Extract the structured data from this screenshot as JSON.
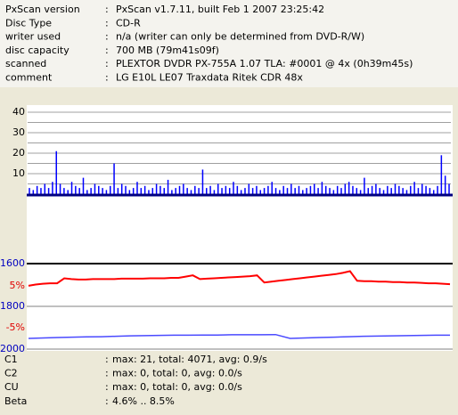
{
  "separator": ":",
  "header": {
    "rows": [
      {
        "label": "PxScan version",
        "value": "PxScan v1.7.11, built Feb  1 2007 23:25:42"
      },
      {
        "label": "Disc Type",
        "value": "CD-R"
      },
      {
        "label": "writer used",
        "value": "n/a (writer can only be determined from DVD-R/W)"
      },
      {
        "label": "disc capacity",
        "value": "700 MB (79m41s09f)"
      },
      {
        "label": "scanned",
        "value": "PLEXTOR DVDR PX-755A 1.07 TLA: #0001 @ 4x (0h39m45s)"
      },
      {
        "label": "comment",
        "value": "LG E10L LE07 Traxdata Ritek CDR 48x"
      }
    ]
  },
  "charts": [
    {
      "type": "bar",
      "color": "#0000ff",
      "ylim": [
        0,
        43.5
      ],
      "yticks": [
        10,
        20,
        30,
        40
      ],
      "minor_yticks": [
        5,
        15,
        25,
        35
      ],
      "grid": true,
      "values": [
        3,
        2,
        4,
        3,
        5,
        3,
        6,
        21,
        5,
        3,
        2,
        6,
        4,
        3,
        8,
        2,
        3,
        5,
        4,
        3,
        2,
        4,
        15,
        3,
        5,
        4,
        2,
        3,
        6,
        3,
        4,
        2,
        3,
        5,
        4,
        3,
        7,
        2,
        3,
        4,
        5,
        3,
        2,
        4,
        3,
        12,
        3,
        4,
        2,
        5,
        3,
        4,
        3,
        6,
        4,
        2,
        3,
        5,
        3,
        4,
        2,
        3,
        4,
        6,
        3,
        2,
        4,
        3,
        5,
        3,
        4,
        2,
        3,
        4,
        5,
        3,
        6,
        4,
        3,
        2,
        4,
        3,
        5,
        6,
        4,
        3,
        2,
        8,
        3,
        4,
        5,
        3,
        2,
        4,
        3,
        5,
        4,
        3,
        2,
        4,
        6,
        3,
        5,
        4,
        3,
        2,
        4,
        19,
        9,
        5
      ]
    },
    {
      "type": "line",
      "ylim": [
        2000,
        1600
      ],
      "yticks": [
        1600,
        1800,
        2000
      ],
      "y2lim": [
        -10.1,
        10.3
      ],
      "y2ticks": [
        {
          "value": 5,
          "label": "5%"
        },
        {
          "value": -5,
          "label": "-5%"
        }
      ],
      "series": [
        {
          "color": "#ff0000",
          "axis": "y2",
          "values": [
            5.0,
            5.3,
            5.5,
            5.6,
            5.6,
            6.8,
            6.6,
            6.5,
            6.5,
            6.6,
            6.6,
            6.6,
            6.6,
            6.7,
            6.7,
            6.7,
            6.7,
            6.8,
            6.8,
            6.8,
            6.9,
            6.9,
            7.2,
            7.5,
            6.6,
            6.7,
            6.8,
            6.9,
            7.0,
            7.1,
            7.2,
            7.3,
            7.5,
            5.8,
            6.0,
            6.2,
            6.4,
            6.6,
            6.8,
            7.0,
            7.2,
            7.4,
            7.6,
            7.8,
            8.1,
            8.5,
            6.2,
            6.1,
            6.1,
            6.0,
            6.0,
            5.9,
            5.9,
            5.8,
            5.8,
            5.7,
            5.6,
            5.6,
            5.5,
            5.4
          ]
        },
        {
          "color": "#4a4aff",
          "values": [
            1950,
            1948,
            1946,
            1944,
            1943,
            1942,
            1940,
            1938,
            1937,
            1936,
            1935,
            1935,
            1934,
            1934,
            1933,
            1933,
            1933,
            1932,
            1950,
            1948,
            1946,
            1944,
            1942,
            1940,
            1939,
            1938,
            1937,
            1936,
            1935,
            1935
          ]
        }
      ]
    }
  ],
  "stats": {
    "rows": [
      {
        "label": "C1",
        "value": "max: 21, total: 4071, avg: 0.9/s"
      },
      {
        "label": "C2",
        "value": "max: 0, total: 0, avg: 0.0/s"
      },
      {
        "label": "CU",
        "value": "max: 0, total: 0, avg: 0.0/s"
      },
      {
        "label": "Beta",
        "value": "4.6% .. 8.5%"
      }
    ]
  }
}
